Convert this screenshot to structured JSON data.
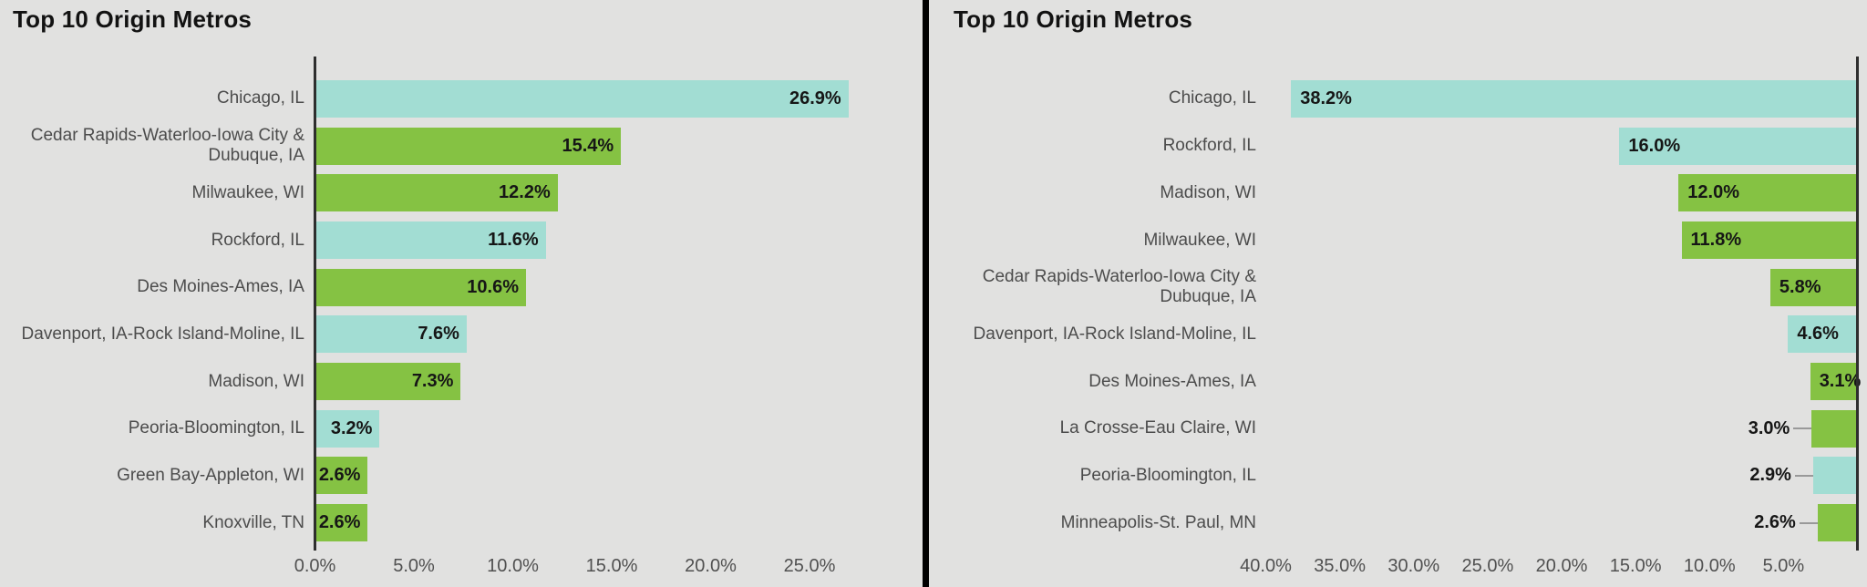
{
  "colors": {
    "background": "#e1e1e0",
    "bar_teal": "#a2ddd3",
    "bar_green": "#85c243",
    "title_text": "#121212",
    "category_text": "#4c4c4c",
    "value_text": "#161616",
    "tick_text": "#505050",
    "axis_line": "#2e2e2e",
    "divider": "#000000",
    "leader_line": "#999999"
  },
  "chart_data": [
    {
      "type": "bar",
      "orientation": "horizontal",
      "direction": "left-to-right",
      "title": "Top 10 Origin Metros",
      "categories": [
        "Chicago, IL",
        "Cedar Rapids-Waterloo-Iowa City & Dubuque, IA",
        "Milwaukee, WI",
        "Rockford, IL",
        "Des Moines-Ames, IA",
        "Davenport, IA-Rock Island-Moline, IL",
        "Madison, WI",
        "Peoria-Bloomington, IL",
        "Green Bay-Appleton, WI",
        "Knoxville, TN"
      ],
      "values": [
        26.9,
        15.4,
        12.2,
        11.6,
        10.6,
        7.6,
        7.3,
        3.2,
        2.6,
        2.6
      ],
      "value_labels": [
        "26.9%",
        "15.4%",
        "12.2%",
        "11.6%",
        "10.6%",
        "7.6%",
        "7.3%",
        "3.2%",
        "2.6%",
        "2.6%"
      ],
      "bar_colors": [
        "teal",
        "green",
        "green",
        "teal",
        "green",
        "teal",
        "green",
        "teal",
        "green",
        "green"
      ],
      "value_label_placement": [
        "inside",
        "inside",
        "inside",
        "inside",
        "inside",
        "inside",
        "inside",
        "inside",
        "inside",
        "inside"
      ],
      "x_tick_labels": [
        "0.0%",
        "5.0%",
        "10.0%",
        "15.0%",
        "20.0%",
        "25.0%"
      ],
      "x_tick_values": [
        0,
        5,
        10,
        15,
        20,
        25
      ],
      "xlim": [
        0,
        27.5
      ],
      "xlabel": "",
      "ylabel": "",
      "grid": false,
      "legend": "none"
    },
    {
      "type": "bar",
      "orientation": "horizontal",
      "direction": "right-to-left",
      "title": "Top 10 Origin Metros",
      "categories": [
        "Chicago, IL",
        "Rockford, IL",
        "Madison, WI",
        "Milwaukee, WI",
        "Cedar Rapids-Waterloo-Iowa City & Dubuque, IA",
        "Davenport, IA-Rock Island-Moline, IL",
        "Des Moines-Ames, IA",
        "La Crosse-Eau Claire, WI",
        "Peoria-Bloomington, IL",
        "Minneapolis-St. Paul, MN"
      ],
      "values": [
        38.2,
        16.0,
        12.0,
        11.8,
        5.8,
        4.6,
        3.1,
        3.0,
        2.9,
        2.6
      ],
      "value_labels": [
        "38.2%",
        "16.0%",
        "12.0%",
        "11.8%",
        "5.8%",
        "4.6%",
        "3.1%",
        "3.0%",
        "2.9%",
        "2.6%"
      ],
      "bar_colors": [
        "teal",
        "teal",
        "green",
        "green",
        "green",
        "teal",
        "green",
        "green",
        "teal",
        "green"
      ],
      "value_label_placement": [
        "inside",
        "inside",
        "inside",
        "inside",
        "inside",
        "inside",
        "inside",
        "outside",
        "outside",
        "outside"
      ],
      "x_tick_labels": [
        "40.0%",
        "35.0%",
        "30.0%",
        "25.0%",
        "20.0%",
        "15.0%",
        "10.0%",
        "5.0%"
      ],
      "x_tick_values": [
        40,
        35,
        30,
        25,
        20,
        15,
        10,
        5
      ],
      "xlim": [
        0,
        40
      ],
      "xlabel": "",
      "ylabel": "",
      "grid": false,
      "legend": "none"
    }
  ]
}
